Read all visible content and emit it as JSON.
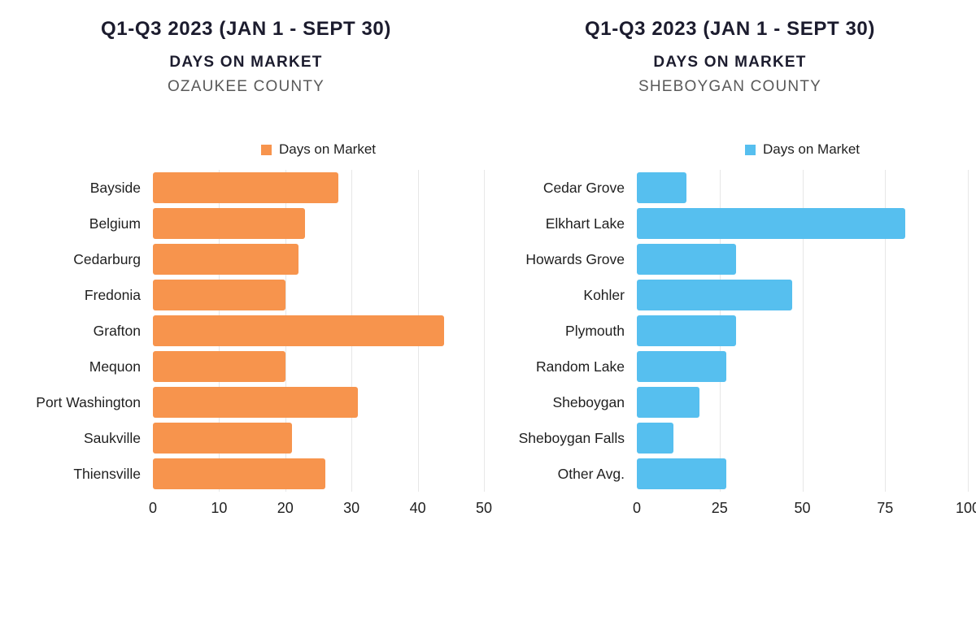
{
  "chart_data": [
    {
      "type": "bar",
      "orientation": "horizontal",
      "title": "Q1-Q3 2023 (JAN 1 - SEPT 30)",
      "subtitle": "DAYS ON MARKET",
      "county": "OZAUKEE COUNTY",
      "legend_label": "Days on Market",
      "legend_position": "top",
      "bar_color": "#F7944D",
      "grid": true,
      "xlim": [
        0,
        50
      ],
      "ticks": [
        0,
        10,
        20,
        30,
        40,
        50
      ],
      "categories": [
        "Bayside",
        "Belgium",
        "Cedarburg",
        "Fredonia",
        "Grafton",
        "Mequon",
        "Port Washington",
        "Saukville",
        "Thiensville"
      ],
      "values": [
        28,
        23,
        22,
        20,
        44,
        20,
        31,
        21,
        26
      ]
    },
    {
      "type": "bar",
      "orientation": "horizontal",
      "title": "Q1-Q3 2023 (JAN 1 - SEPT 30)",
      "subtitle": "DAYS ON MARKET",
      "county": "SHEBOYGAN COUNTY",
      "legend_label": "Days on Market",
      "legend_position": "top",
      "bar_color": "#56BFEF",
      "grid": true,
      "xlim": [
        0,
        100
      ],
      "ticks": [
        0,
        25,
        50,
        75,
        100
      ],
      "categories": [
        "Cedar Grove",
        "Elkhart Lake",
        "Howards Grove",
        "Kohler",
        "Plymouth",
        "Random Lake",
        "Sheboygan",
        "Sheboygan Falls",
        "Other Avg."
      ],
      "values": [
        15,
        81,
        30,
        47,
        30,
        27,
        19,
        11,
        27
      ]
    }
  ]
}
